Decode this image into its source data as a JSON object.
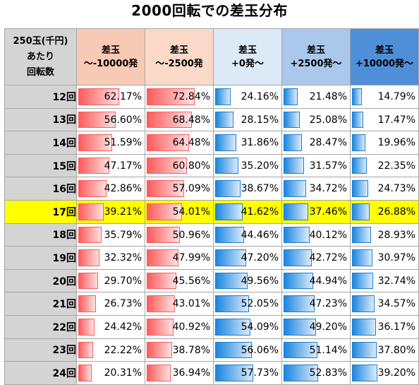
{
  "title": "2000回転での差玉分布",
  "corner": {
    "line1": "250玉(千円)",
    "line2": "あたり",
    "line3": "回転数"
  },
  "columns": [
    {
      "line1": "差玉",
      "line2": "～-10000発",
      "bg": "#f8c9b4",
      "bar": "red"
    },
    {
      "line1": "差玉",
      "line2": "～-2500発",
      "bg": "#fad9c9",
      "bar": "red"
    },
    {
      "line1": "差玉",
      "line2": "+0発～",
      "bg": "#dce9f7",
      "bar": "blue"
    },
    {
      "line1": "差玉",
      "line2": "+2500発～",
      "bg": "#aac8ec",
      "bar": "blue"
    },
    {
      "line1": "差玉",
      "line2": "+10000発～",
      "bg": "#4f8fd8",
      "bar": "blue"
    }
  ],
  "rows": [
    {
      "label": "12回",
      "values": [
        "62.17%",
        "72.84%",
        "24.16%",
        "21.48%",
        "14.79%"
      ]
    },
    {
      "label": "13回",
      "values": [
        "56.60%",
        "68.48%",
        "28.15%",
        "25.08%",
        "17.47%"
      ]
    },
    {
      "label": "14回",
      "values": [
        "51.59%",
        "64.48%",
        "31.86%",
        "28.47%",
        "19.96%"
      ]
    },
    {
      "label": "15回",
      "values": [
        "47.17%",
        "60.80%",
        "35.20%",
        "31.57%",
        "22.35%"
      ]
    },
    {
      "label": "16回",
      "values": [
        "42.86%",
        "57.09%",
        "38.67%",
        "34.72%",
        "24.73%"
      ]
    },
    {
      "label": "17回",
      "values": [
        "39.21%",
        "54.01%",
        "41.62%",
        "37.46%",
        "26.88%"
      ],
      "highlight": true
    },
    {
      "label": "18回",
      "values": [
        "35.79%",
        "50.96%",
        "44.46%",
        "40.12%",
        "28.93%"
      ]
    },
    {
      "label": "19回",
      "values": [
        "32.32%",
        "47.99%",
        "47.20%",
        "42.72%",
        "30.97%"
      ]
    },
    {
      "label": "20回",
      "values": [
        "29.70%",
        "45.56%",
        "49.56%",
        "44.94%",
        "32.74%"
      ]
    },
    {
      "label": "21回",
      "values": [
        "26.73%",
        "43.01%",
        "52.05%",
        "47.23%",
        "34.57%"
      ]
    },
    {
      "label": "22回",
      "values": [
        "24.42%",
        "40.92%",
        "54.09%",
        "49.20%",
        "36.17%"
      ]
    },
    {
      "label": "23回",
      "values": [
        "22.22%",
        "38.78%",
        "56.06%",
        "51.14%",
        "37.80%"
      ]
    },
    {
      "label": "24回",
      "values": [
        "20.31%",
        "36.94%",
        "57.73%",
        "52.83%",
        "39.20%"
      ]
    }
  ]
}
